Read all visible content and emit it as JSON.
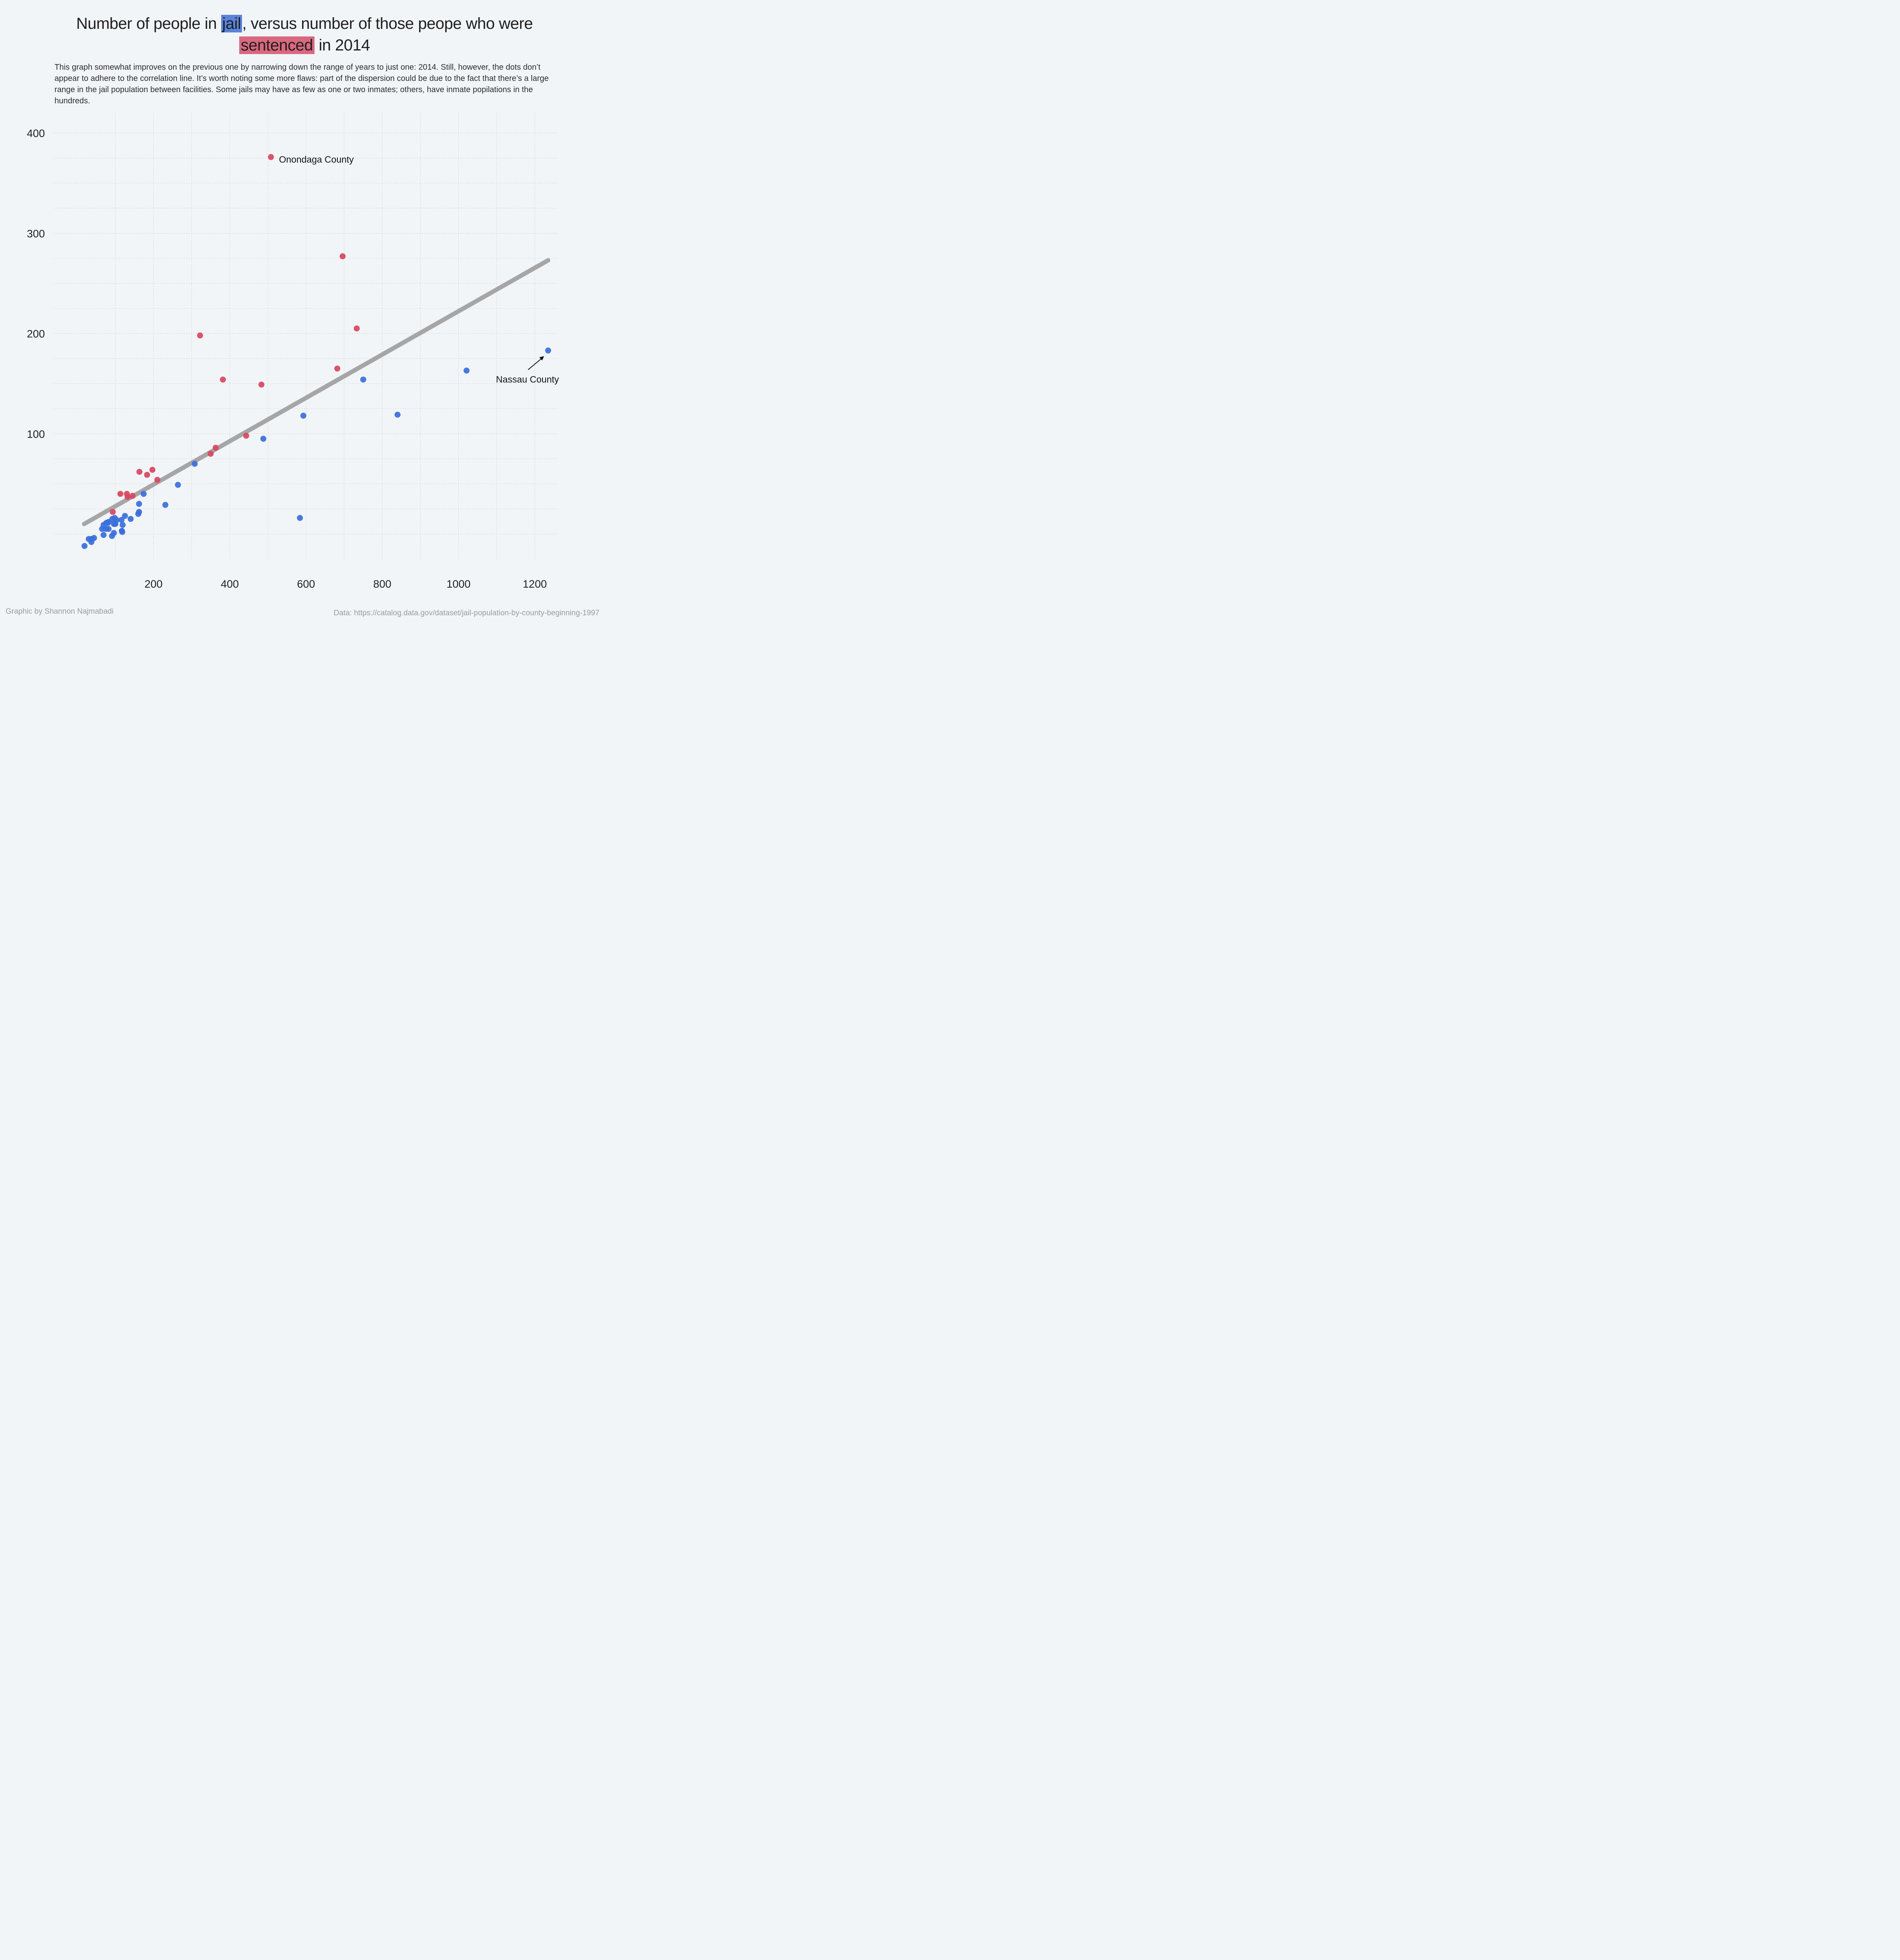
{
  "title": {
    "part1": "Number of people in ",
    "highlight_jail": "jail",
    "part2": ", versus number of those peope who were",
    "highlight_sentenced": "sentenced",
    "part3": " in 2014"
  },
  "subtitle": "This graph somewhat improves on the previous one by narrowing down the range of years to just one: 2014. Still, however, the dots don’t appear to adhere to the correlation line. It’s worth noting some more flaws: part of the dispersion could be due to the fact that there’s a large range in the jail population between facilities. Some jails may have as few as one or two inmates; others, have inmate popilations in the hundreds.",
  "footer": {
    "credit": "Graphic by Shannon Najmabadi",
    "source": "Data: https://catalog.data.gov/dataset/jail-population-by-county-beginning-1997"
  },
  "colors": {
    "background": "#f2f5f8",
    "jail": "#3a6fdc",
    "sentenced": "#d8475f",
    "trend": "#a6a6a6",
    "grid": "#c9ccd0"
  },
  "chart_data": {
    "type": "scatter",
    "title": "Number of people in jail, versus number of those peope who were sentenced in 2014",
    "xlabel": "",
    "ylabel": "",
    "xlim": [
      15,
      1265
    ],
    "ylim": [
      -15,
      420
    ],
    "x_ticks": [
      200,
      400,
      600,
      800,
      1000,
      1200
    ],
    "y_ticks": [
      100,
      200,
      300,
      400
    ],
    "grid": true,
    "grid_style": "dotted",
    "series": [
      {
        "color_key": "jail",
        "points": [
          [
            19,
            -12
          ],
          [
            30,
            -5
          ],
          [
            37,
            -8
          ],
          [
            37,
            -5
          ],
          [
            44,
            -4
          ],
          [
            65,
            5
          ],
          [
            69,
            -1
          ],
          [
            69,
            9
          ],
          [
            75,
            5
          ],
          [
            76,
            11
          ],
          [
            80,
            11
          ],
          [
            82,
            12
          ],
          [
            82,
            5
          ],
          [
            91,
            -2
          ],
          [
            92,
            15
          ],
          [
            96,
            10
          ],
          [
            96,
            1
          ],
          [
            98,
            16
          ],
          [
            100,
            10
          ],
          [
            103,
            14
          ],
          [
            116,
            14
          ],
          [
            117,
            3
          ],
          [
            117,
            3
          ],
          [
            118,
            2
          ],
          [
            119,
            9
          ],
          [
            125,
            18
          ],
          [
            140,
            15
          ],
          [
            160,
            20
          ],
          [
            162,
            30
          ],
          [
            162,
            22
          ],
          [
            174,
            40
          ],
          [
            231,
            29
          ],
          [
            264,
            49
          ],
          [
            308,
            70
          ],
          [
            488,
            95
          ],
          [
            584,
            16
          ],
          [
            593,
            118
          ],
          [
            750,
            154
          ],
          [
            840,
            119
          ],
          [
            1021,
            163
          ],
          [
            1235,
            183
          ]
        ]
      },
      {
        "color_key": "sentenced",
        "points": [
          [
            93,
            22
          ],
          [
            113,
            40
          ],
          [
            130,
            40
          ],
          [
            132,
            37
          ],
          [
            145,
            38
          ],
          [
            163,
            62
          ],
          [
            183,
            59
          ],
          [
            197,
            64
          ],
          [
            210,
            54
          ],
          [
            350,
            80
          ],
          [
            363,
            86
          ],
          [
            382,
            154
          ],
          [
            322,
            198
          ],
          [
            443,
            98
          ],
          [
            483,
            149
          ],
          [
            508,
            376
          ],
          [
            682,
            165
          ],
          [
            696,
            277
          ],
          [
            733,
            205
          ]
        ]
      }
    ],
    "trend_line": {
      "from": [
        18,
        10
      ],
      "to": [
        1235,
        273
      ]
    },
    "annotations": [
      {
        "text": "Onondaga County",
        "point": [
          508,
          376
        ]
      },
      {
        "text": "Nassau County",
        "point": [
          1235,
          183
        ]
      }
    ]
  }
}
